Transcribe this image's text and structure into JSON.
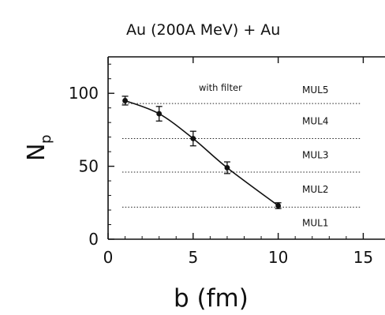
{
  "chart_data": {
    "type": "scatter",
    "title": "Au (200A MeV) + Au",
    "xlabel": "b (fm)",
    "ylabel": "N",
    "ylabel_subscript": "p",
    "xlim": [
      0,
      16
    ],
    "ylim": [
      0,
      125
    ],
    "x_ticks": [
      0,
      5,
      10,
      15
    ],
    "y_ticks": [
      0,
      50,
      100
    ],
    "annotation": "with filter",
    "points": [
      {
        "x": 1,
        "y": 95,
        "err": 3
      },
      {
        "x": 3,
        "y": 86,
        "err": 5
      },
      {
        "x": 5,
        "y": 69,
        "err": 5
      },
      {
        "x": 7,
        "y": 49,
        "err": 4
      },
      {
        "x": 10,
        "y": 23,
        "err": 2
      }
    ],
    "curve_fit": true,
    "bins": [
      {
        "label": "MUL5",
        "lower": 93
      },
      {
        "label": "MUL4",
        "lower": 69
      },
      {
        "label": "MUL3",
        "lower": 46
      },
      {
        "label": "MUL2",
        "lower": 22
      },
      {
        "label": "MUL1",
        "lower": 0
      }
    ]
  }
}
